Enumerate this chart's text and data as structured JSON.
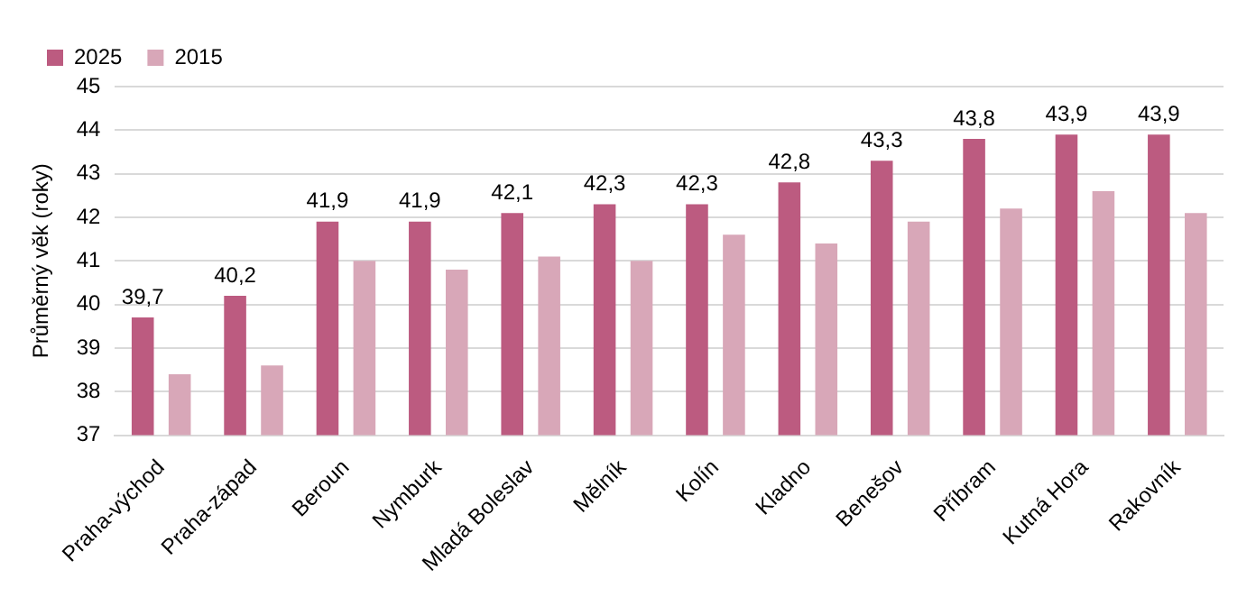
{
  "chart_data": {
    "type": "bar",
    "ylabel": "Průměrný věk (roky)",
    "categories": [
      "Praha-východ",
      "Praha-západ",
      "Beroun",
      "Nymburk",
      "Mladá Boleslav",
      "Mělník",
      "Kolín",
      "Kladno",
      "Benešov",
      "Příbram",
      "Kutná Hora",
      "Rakovník"
    ],
    "series": [
      {
        "name": "2025",
        "color": "#bc5b80",
        "values": [
          39.7,
          40.2,
          41.9,
          41.9,
          42.1,
          42.3,
          42.3,
          42.8,
          43.3,
          43.8,
          43.9,
          43.9
        ],
        "value_labels": [
          "39,7",
          "40,2",
          "41,9",
          "41,9",
          "42,1",
          "42,3",
          "42,3",
          "42,8",
          "43,3",
          "43,8",
          "43,9",
          "43,9"
        ]
      },
      {
        "name": "2015",
        "color": "#d8a7b8",
        "values": [
          38.4,
          38.6,
          41.0,
          40.8,
          41.1,
          41.0,
          41.6,
          41.4,
          41.9,
          42.2,
          42.6,
          42.1
        ]
      }
    ],
    "ylim": [
      37,
      45
    ],
    "yticks": [
      37,
      38,
      39,
      40,
      41,
      42,
      43,
      44,
      45
    ],
    "grid": "y",
    "legend": "top left"
  }
}
